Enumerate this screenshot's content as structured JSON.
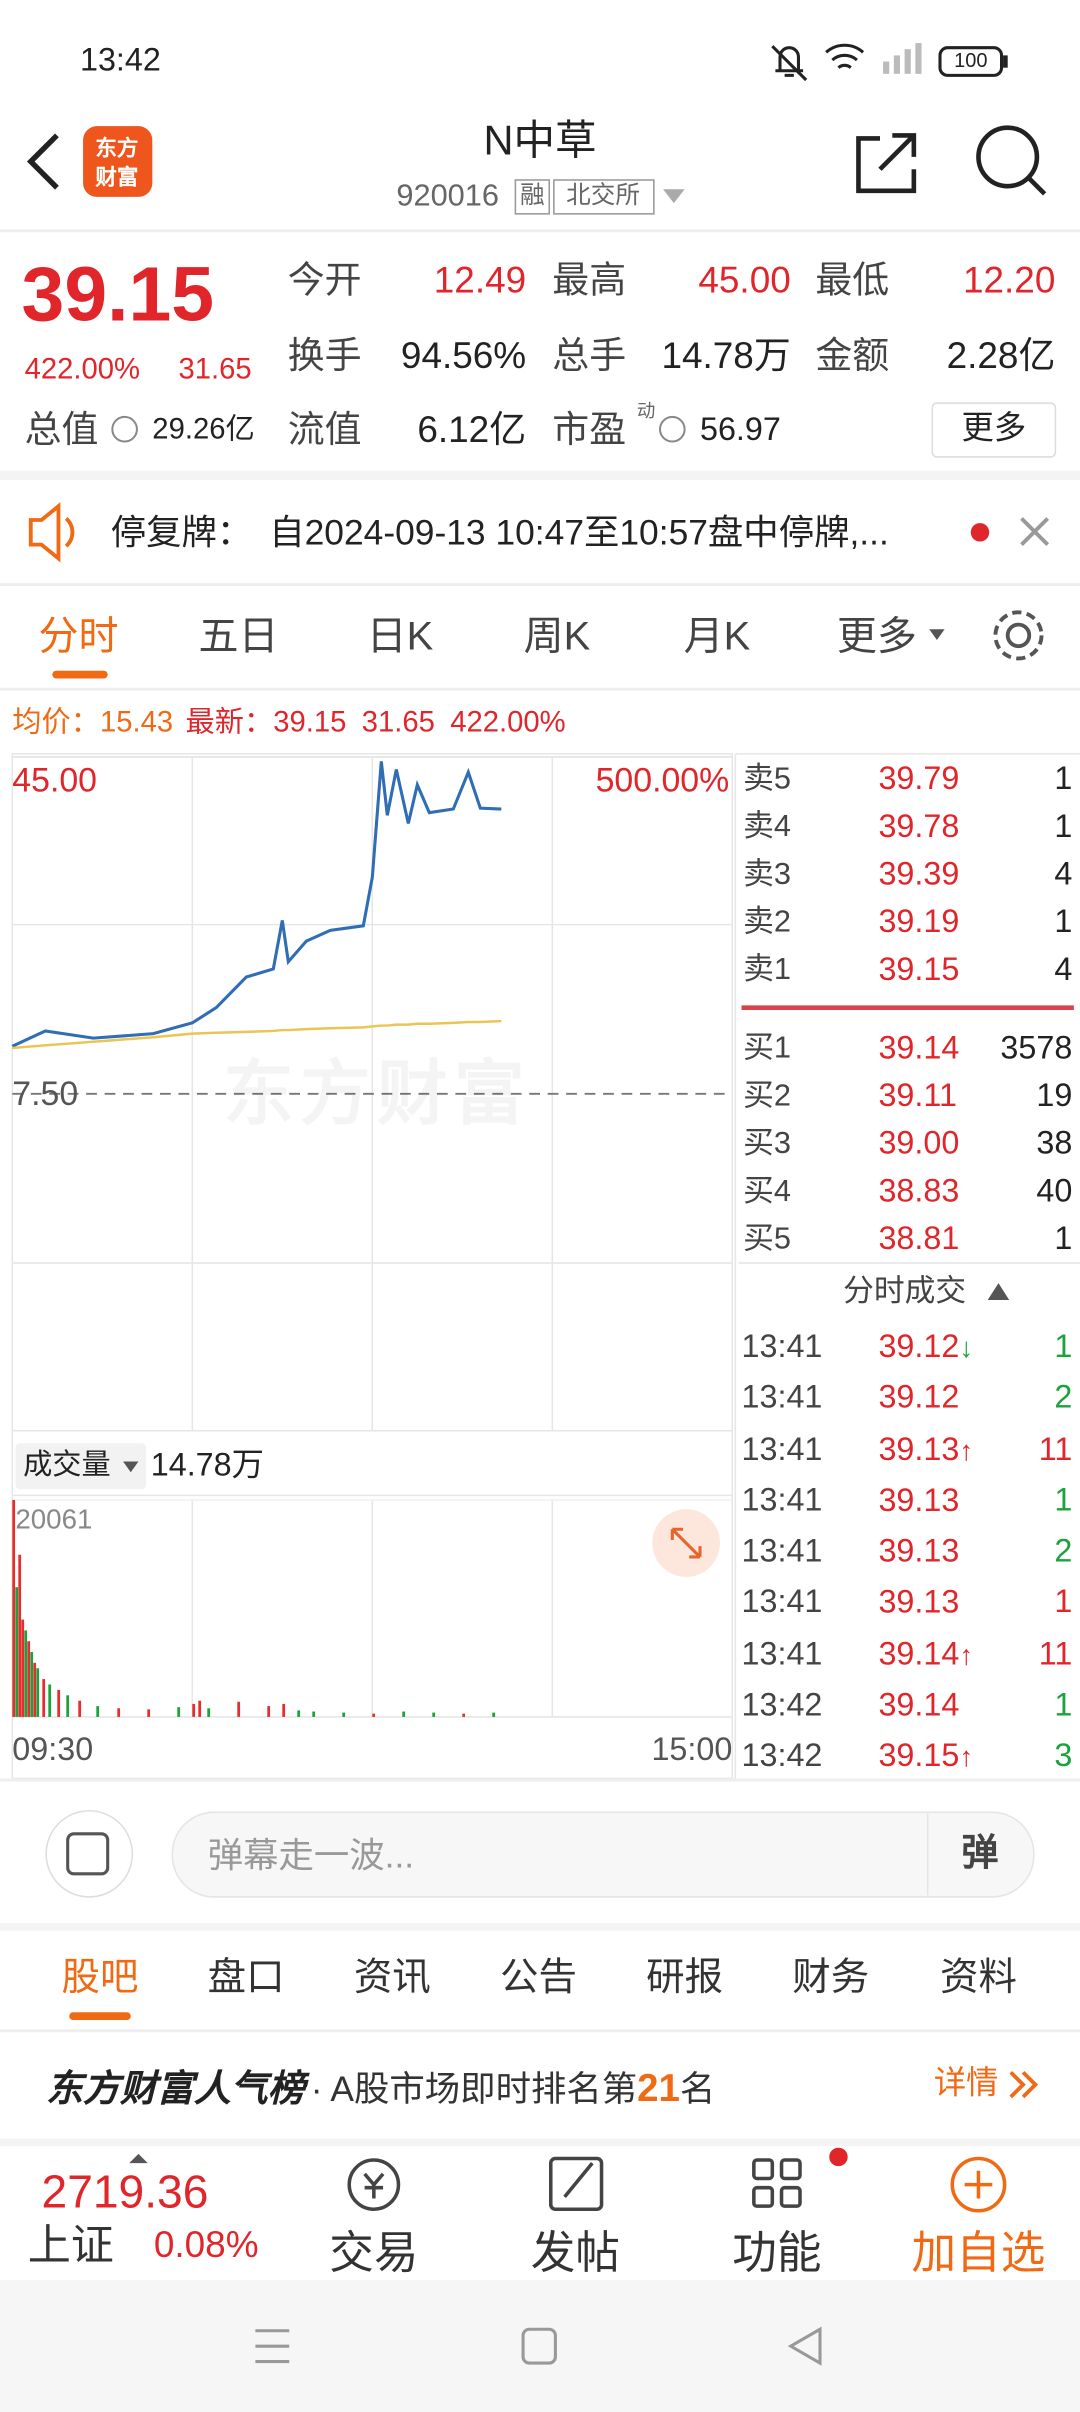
{
  "status_bar": {
    "time": "13:42",
    "battery": "100"
  },
  "header": {
    "logo": [
      "东方",
      "财富"
    ],
    "title": "N中草",
    "code": "920016",
    "tags": [
      "融",
      "北交所"
    ]
  },
  "quote": {
    "price": "39.15",
    "change_pct": "422.00%",
    "change": "31.65",
    "fields": [
      {
        "label": "今开",
        "value": "12.49"
      },
      {
        "label": "最高",
        "value": "45.00"
      },
      {
        "label": "最低",
        "value": "12.20"
      },
      {
        "label": "换手",
        "value": "94.56%"
      },
      {
        "label": "总手",
        "value": "14.78万"
      },
      {
        "label": "金额",
        "value": "2.28亿"
      },
      {
        "label": "总值",
        "value": "29.26亿"
      },
      {
        "label": "流值",
        "value": "6.12亿"
      },
      {
        "label": "市盈",
        "value": "56.97"
      }
    ],
    "pe_tag": "动",
    "more": "更多"
  },
  "notice": {
    "label": "停复牌：",
    "text": "自2024-09-13 10:47至10:57盘中停牌,..."
  },
  "tabs": [
    "分时",
    "五日",
    "日K",
    "周K",
    "月K",
    "更多"
  ],
  "summary": {
    "avg_label": "均价：",
    "avg": "15.43",
    "last_label": "最新：",
    "last": "39.15",
    "change": "31.65",
    "change_pct": "422.00%"
  },
  "chart_data": [
    {
      "type": "line",
      "watermark": "东方财富",
      "x": [
        0,
        11,
        27,
        47,
        60,
        68,
        78,
        87,
        90,
        92,
        98,
        106,
        117,
        120,
        123,
        125,
        128,
        132,
        135,
        139,
        147,
        152,
        156,
        163
      ],
      "xlim": [
        0,
        240
      ],
      "xticks": [
        {
          "value": 0,
          "label": "09:30"
        },
        {
          "value": 240,
          "label": "15:00"
        }
      ],
      "ylim": [
        -30,
        45
      ],
      "yticks": [
        {
          "value": 45,
          "label": "45.00"
        },
        {
          "value": 7.5,
          "label": "7.50"
        }
      ],
      "y2lim": [
        -500,
        500
      ],
      "y2ticks": [
        {
          "value": 500,
          "label": "500.00%"
        }
      ],
      "series": [
        {
          "color": "#2f6db5",
          "values": [
            12.8,
            14.5,
            13.7,
            14.2,
            15.4,
            17.1,
            20.5,
            21.4,
            26.8,
            22.2,
            24.5,
            25.7,
            26.2,
            31.6,
            44.5,
            38.5,
            43.6,
            37.6,
            41.9,
            38.8,
            39.2,
            43.3,
            39.3,
            39.2
          ]
        },
        {
          "color": "#eac553",
          "values": [
            12.6,
            12.9,
            13.3,
            13.8,
            14.2,
            14.3,
            14.4,
            14.5,
            14.6,
            14.6,
            14.7,
            14.8,
            14.9,
            15.0,
            15.1,
            15.1,
            15.2,
            15.2,
            15.3,
            15.3,
            15.4,
            15.5,
            15.5,
            15.6
          ]
        }
      ]
    },
    {
      "type": "bar",
      "title": "成交量",
      "total": "14.78万",
      "x": [
        0,
        1,
        2,
        3,
        4,
        5,
        6,
        7,
        8,
        10,
        12,
        15,
        18,
        22,
        28,
        35,
        45,
        55,
        60,
        62,
        65,
        75,
        85,
        90,
        95,
        100,
        110,
        120,
        130,
        140,
        150,
        160
      ],
      "values": [
        20061,
        12000,
        15000,
        9000,
        8000,
        7000,
        6000,
        5000,
        4500,
        3500,
        3000,
        2500,
        2000,
        1500,
        1000,
        800,
        700,
        900,
        1200,
        1500,
        800,
        1400,
        1000,
        1200,
        600,
        500,
        400,
        300,
        500,
        400,
        300,
        400
      ],
      "colors": [
        "#e62e2e",
        "#1aa33c",
        "#e62e2e",
        "#e62e2e",
        "#1aa33c",
        "#e62e2e",
        "#1aa33c",
        "#e62e2e",
        "#1aa33c",
        "#e62e2e",
        "#1aa33c",
        "#e62e2e",
        "#1aa33c",
        "#e62e2e",
        "#1aa33c",
        "#e62e2e",
        "#e62e2e",
        "#1aa33c",
        "#e62e2e",
        "#e62e2e",
        "#1aa33c",
        "#e62e2e",
        "#e62e2e",
        "#e62e2e",
        "#1aa33c",
        "#1aa33c",
        "#1aa33c",
        "#e62e2e",
        "#1aa33c",
        "#1aa33c",
        "#e62e2e",
        "#1aa33c"
      ],
      "xlim": [
        0,
        240
      ],
      "ylim": [
        0,
        20061
      ],
      "yticks": [
        20061
      ]
    }
  ],
  "order_book": {
    "asks": [
      {
        "label": "卖5",
        "price": "39.79",
        "volume": "1"
      },
      {
        "label": "卖4",
        "price": "39.78",
        "volume": "1"
      },
      {
        "label": "卖3",
        "price": "39.39",
        "volume": "4"
      },
      {
        "label": "卖2",
        "price": "39.19",
        "volume": "1"
      },
      {
        "label": "卖1",
        "price": "39.15",
        "volume": "4"
      }
    ],
    "bids": [
      {
        "label": "买1",
        "price": "39.14",
        "volume": "3578"
      },
      {
        "label": "买2",
        "price": "39.11",
        "volume": "19"
      },
      {
        "label": "买3",
        "price": "39.00",
        "volume": "38"
      },
      {
        "label": "买4",
        "price": "38.83",
        "volume": "40"
      },
      {
        "label": "买5",
        "price": "38.81",
        "volume": "1"
      }
    ]
  },
  "trades": {
    "title": "分时成交",
    "rows": [
      {
        "time": "13:41",
        "price": "39.12",
        "arrow": "↓",
        "volume": "1",
        "color": "#1aa33c"
      },
      {
        "time": "13:41",
        "price": "39.12",
        "volume": "2",
        "color": "#1aa33c"
      },
      {
        "time": "13:41",
        "price": "39.13",
        "arrow": "↑",
        "volume": "11",
        "color": "#e0262b"
      },
      {
        "time": "13:41",
        "price": "39.13",
        "volume": "1",
        "color": "#1aa33c"
      },
      {
        "time": "13:41",
        "price": "39.13",
        "volume": "2",
        "color": "#1aa33c"
      },
      {
        "time": "13:41",
        "price": "39.13",
        "volume": "1",
        "color": "#e0262b"
      },
      {
        "time": "13:41",
        "price": "39.14",
        "arrow": "↑",
        "volume": "11",
        "color": "#e0262b"
      },
      {
        "time": "13:42",
        "price": "39.14",
        "volume": "1",
        "color": "#1aa33c"
      },
      {
        "time": "13:42",
        "price": "39.15",
        "arrow": "↑",
        "volume": "3",
        "color": "#1aa33c"
      }
    ]
  },
  "comment": {
    "placeholder": "弹幕走一波...",
    "button": "弹"
  },
  "bottom_tabs": [
    "股吧",
    "盘口",
    "资讯",
    "公告",
    "研报",
    "财务",
    "资料"
  ],
  "ranking": {
    "brand": "东方财富人气榜",
    "text": "· A股市场即时排名第",
    "rank": "21",
    "suffix": "名",
    "link": "详情"
  },
  "nav": {
    "index_value": "2719.36",
    "index_name": "上证",
    "index_change": "0.08%",
    "items": [
      "交易",
      "发帖",
      "功能",
      "加自选"
    ]
  }
}
